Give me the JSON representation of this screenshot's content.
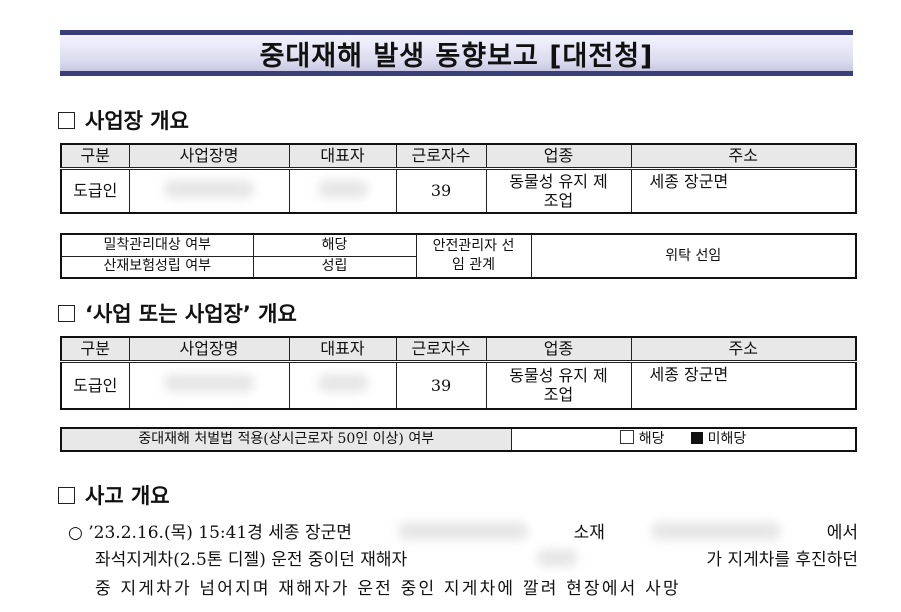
{
  "title": "중대재해 발생 동향보고 [대전청]",
  "section1": {
    "heading": "사업장 개요",
    "headers": [
      "구분",
      "사업장명",
      "대표자",
      "근로자수",
      "업종",
      "주소"
    ],
    "row": {
      "type": "도급인",
      "workers": "39",
      "industry": "동물성 유지 제조업",
      "address": "세종 장군면"
    }
  },
  "info": {
    "label1": "밀착관리대상 여부",
    "value1": "해당",
    "label2": "산재보험성립 여부",
    "value2": "성립",
    "label3": "안전관리자 선임 관계",
    "value3": "위탁 선임"
  },
  "section2": {
    "heading": "‘사업 또는 사업장’ 개요",
    "headers": [
      "구분",
      "사업장명",
      "대표자",
      "근로자수",
      "업종",
      "주소"
    ],
    "row": {
      "type": "도급인",
      "workers": "39",
      "industry": "동물성 유지 제조업",
      "address": "세종 장군면"
    }
  },
  "law": {
    "label": "중대재해 처벌법 적용(상시근로자 50인 이상) 여부",
    "option1": "해당",
    "option1_checked": false,
    "option2": "미해당",
    "option2_checked": true
  },
  "section3": {
    "heading": "사고 개요",
    "bullet": "○",
    "line1": [
      "’23.2.16.(목) 15:41경 세종 장군면",
      "소재",
      "에서"
    ],
    "line2": [
      "좌석지게차(2.5톤 디젤) 운전 중이던 재해자",
      "가 지게차를 후진하던"
    ],
    "line3": "중 지게차가 넘어지며 재해자가 운전 중인 지게차에 깔려 현장에서 사망"
  }
}
